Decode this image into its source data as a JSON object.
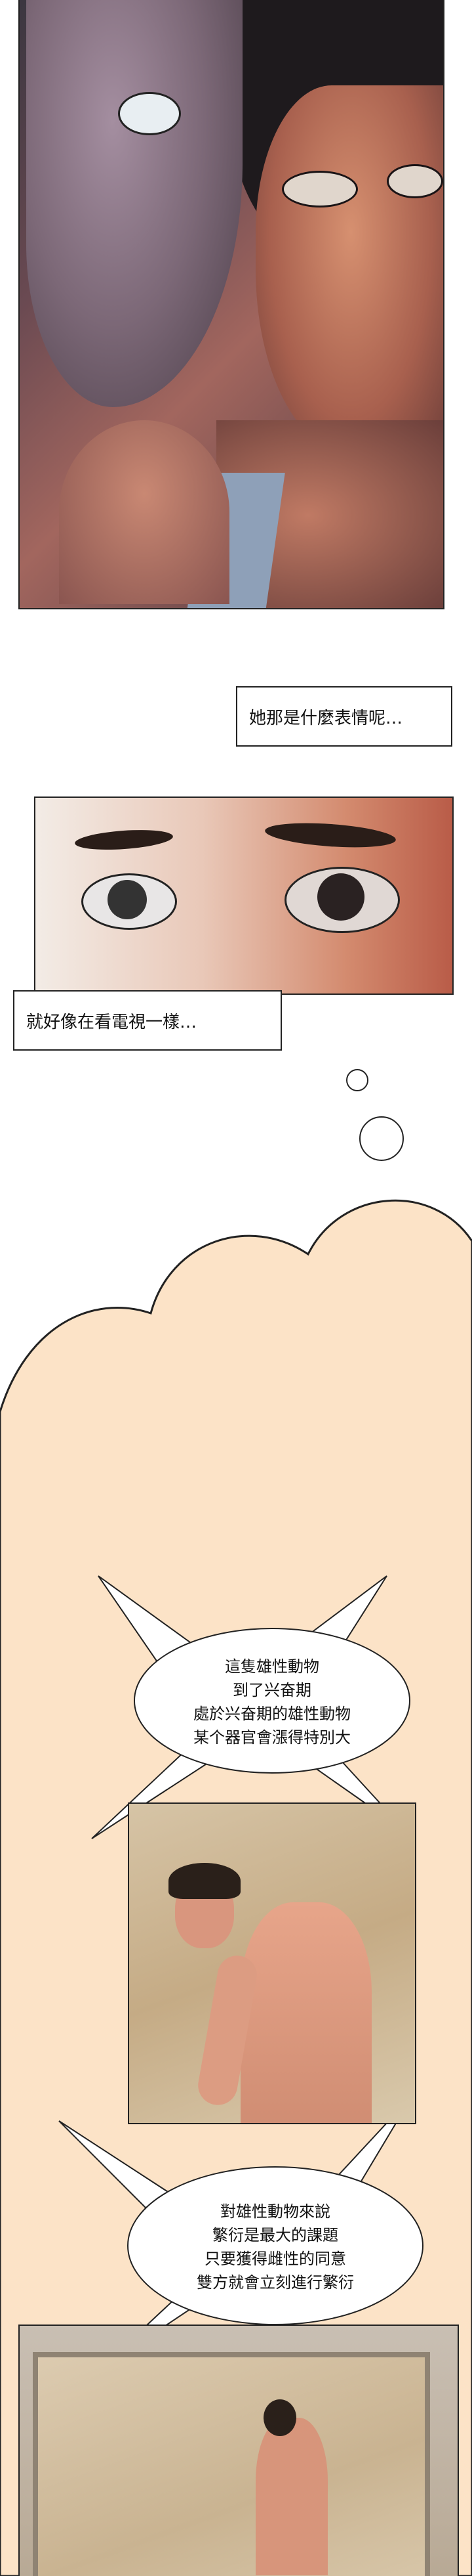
{
  "captions": {
    "first": "她那是什麼表情呢…",
    "second": "就好像在看電視一樣…"
  },
  "bubbles": {
    "first": [
      "這隻雄性動物",
      "到了兴奋期",
      "處於兴奋期的雄性動物",
      "某个器官會漲得特別大"
    ],
    "second": [
      "對雄性動物來說",
      "繁衍是最大的課題",
      "只要獲得雌性的同意",
      "雙方就會立刻進行繁衍"
    ]
  },
  "colors": {
    "thought_background": "#fce3c7",
    "outline": "#222222",
    "bubble_fill": "#ffffff"
  }
}
